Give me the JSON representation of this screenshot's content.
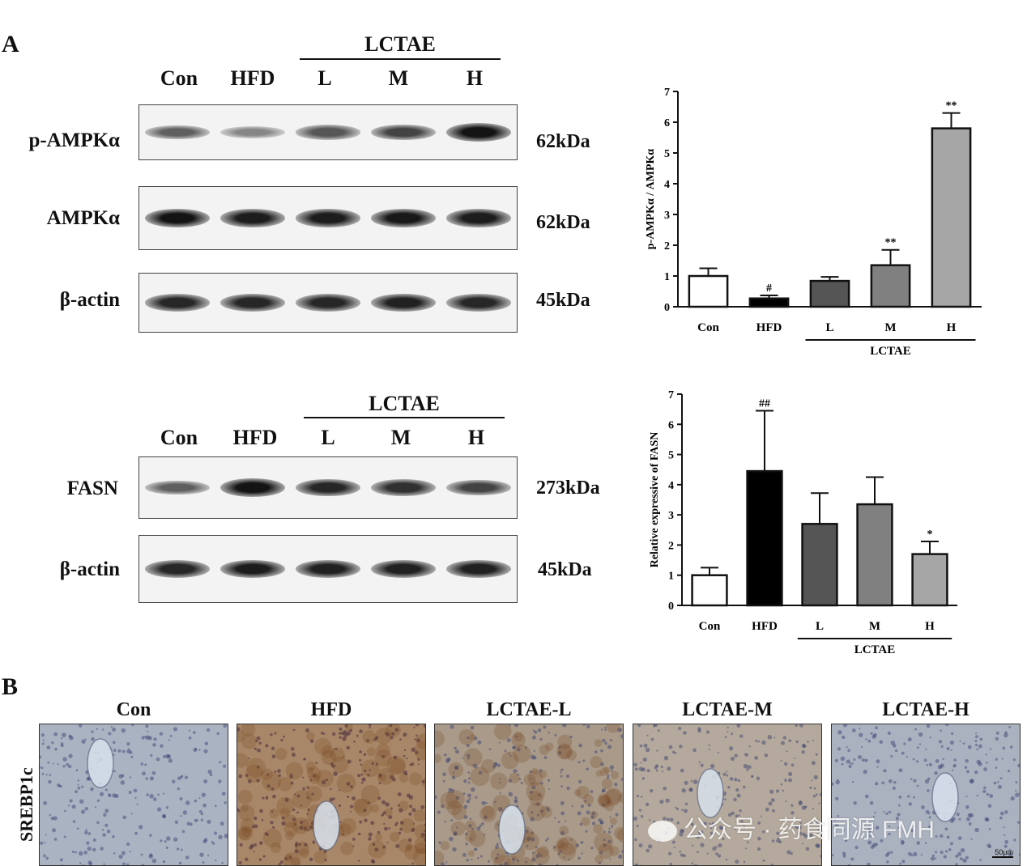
{
  "panelA": {
    "letter": "A",
    "blot1": {
      "group_label": "LCTAE",
      "lanes": [
        "Con",
        "HFD",
        "L",
        "M",
        "H"
      ],
      "rows": [
        {
          "label": "p-AMPKα",
          "kda": "62kDa",
          "intensity": [
            0.55,
            0.35,
            0.6,
            0.7,
            0.95
          ]
        },
        {
          "label": "AMPKα",
          "kda": "62kDa",
          "intensity": [
            0.95,
            0.9,
            0.9,
            0.92,
            0.9
          ]
        },
        {
          "label": "β-actin",
          "kda": "45kDa",
          "intensity": [
            0.85,
            0.85,
            0.85,
            0.88,
            0.85
          ]
        }
      ]
    },
    "blot2": {
      "group_label": "LCTAE",
      "lanes": [
        "Con",
        "HFD",
        "L",
        "M",
        "H"
      ],
      "rows": [
        {
          "label": "FASN",
          "kda": "273kDa",
          "intensity": [
            0.55,
            0.95,
            0.85,
            0.8,
            0.7
          ]
        },
        {
          "label": "β-actin",
          "kda": "45kDa",
          "intensity": [
            0.85,
            0.9,
            0.88,
            0.88,
            0.88
          ]
        }
      ]
    }
  },
  "chart_data": [
    {
      "type": "bar",
      "ylabel": "p-AMPKα / AMPKα",
      "categories": [
        "Con",
        "HFD",
        "L",
        "M",
        "H"
      ],
      "group_label": "LCTAE",
      "values": [
        1.0,
        0.27,
        0.84,
        1.35,
        5.8
      ],
      "errors": [
        0.25,
        0.1,
        0.13,
        0.5,
        0.5
      ],
      "annotations": [
        "",
        "#",
        "",
        "**",
        "**"
      ],
      "colors": [
        "#ffffff",
        "#000000",
        "#555555",
        "#808080",
        "#a6a6a6"
      ],
      "ylim": [
        0,
        7
      ],
      "yticks": [
        0,
        1,
        2,
        3,
        4,
        5,
        6,
        7
      ]
    },
    {
      "type": "bar",
      "ylabel": "Relative expressive of FASN",
      "categories": [
        "Con",
        "HFD",
        "L",
        "M",
        "H"
      ],
      "group_label": "LCTAE",
      "values": [
        1.0,
        4.45,
        2.7,
        3.35,
        1.7
      ],
      "errors": [
        0.25,
        2.0,
        1.02,
        0.9,
        0.42
      ],
      "annotations": [
        "",
        "##",
        "",
        "",
        "*"
      ],
      "colors": [
        "#ffffff",
        "#000000",
        "#555555",
        "#808080",
        "#a6a6a6"
      ],
      "ylim": [
        0,
        7
      ],
      "yticks": [
        0,
        1,
        2,
        3,
        4,
        5,
        6,
        7
      ]
    }
  ],
  "panelB": {
    "letter": "B",
    "row_label": "SREBP1c",
    "titles": [
      "Con",
      "HFD",
      "LCTAE-L",
      "LCTAE-M",
      "LCTAE-H"
    ],
    "tints": [
      "#a9b3c1",
      "#a88768",
      "#a99a8a",
      "#b4a99c",
      "#aab1bf"
    ],
    "scalebar": "50μm",
    "watermark": "公众号 · 药食同源 FMH"
  }
}
